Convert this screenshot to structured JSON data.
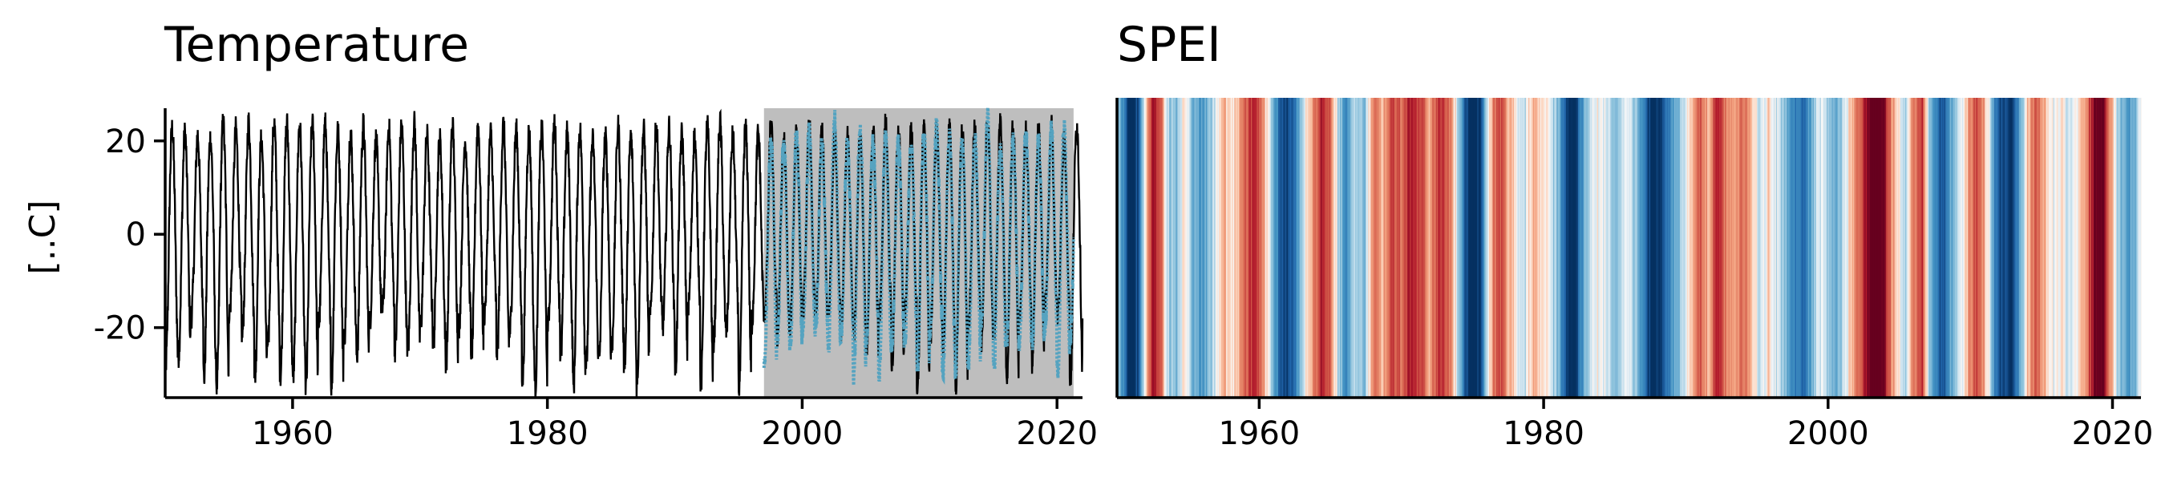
{
  "chart_data": [
    {
      "type": "line",
      "title": "Temperature",
      "ylabel": "[..C]",
      "xlabel": "",
      "xlim": [
        1950,
        2022
      ],
      "ylim": [
        -35,
        27
      ],
      "xticks": [
        1960,
        1980,
        2000,
        2020
      ],
      "yticks": [
        -20,
        0,
        20
      ],
      "ytick_labels": [
        "-20",
        "0",
        "20"
      ],
      "shaded_period": [
        1997,
        2021.3
      ],
      "shade_color": "#bebebe",
      "series": [
        {
          "color": "#000000",
          "range": [
            1950,
            2022
          ],
          "annual_peak_max": [
            20,
            24
          ],
          "annual_trough_min": [
            -33,
            -15
          ],
          "sampling": "weekly",
          "notable_minimum": {
            "x": 1987,
            "y": -35
          }
        },
        {
          "color": "#55a3c0",
          "style": "dotted",
          "range": [
            1997,
            2021.3
          ],
          "annual_peak_max": [
            18,
            25
          ],
          "annual_trough_min": [
            -30,
            -18
          ]
        }
      ]
    },
    {
      "type": "heatmap",
      "title": "SPEI",
      "xlim": [
        1950,
        2022
      ],
      "xticks": [
        1960,
        1980,
        2000,
        2020
      ],
      "colormap": "RdBu",
      "color_range": [
        -2,
        2
      ],
      "stripe_anchors": [
        [
          1950.0,
          0.2
        ],
        [
          1950.5,
          1.3
        ],
        [
          1951.0,
          2.2
        ],
        [
          1951.5,
          1.7
        ],
        [
          1952.0,
          -0.3
        ],
        [
          1952.6,
          -1.7
        ],
        [
          1953.1,
          -0.9
        ],
        [
          1953.6,
          0.4
        ],
        [
          1954.2,
          0.6
        ],
        [
          1954.8,
          -0.3
        ],
        [
          1955.4,
          0.7
        ],
        [
          1956.0,
          1.0
        ],
        [
          1956.8,
          0.3
        ],
        [
          1957.5,
          -0.4
        ],
        [
          1958.2,
          -0.2
        ],
        [
          1959.0,
          -0.9
        ],
        [
          1959.6,
          -1.4
        ],
        [
          1960.2,
          -0.8
        ],
        [
          1960.8,
          0.4
        ],
        [
          1961.4,
          1.4
        ],
        [
          1962.0,
          2.0
        ],
        [
          1962.6,
          1.2
        ],
        [
          1963.2,
          0.1
        ],
        [
          1963.8,
          -0.6
        ],
        [
          1964.4,
          -1.5
        ],
        [
          1965.0,
          -1.0
        ],
        [
          1965.6,
          0.5
        ],
        [
          1966.2,
          1.1
        ],
        [
          1966.8,
          0.3
        ],
        [
          1967.4,
          0.7
        ],
        [
          1968.0,
          -0.8
        ],
        [
          1968.6,
          -0.4
        ],
        [
          1969.3,
          -1.3
        ],
        [
          1970.0,
          -0.9
        ],
        [
          1970.7,
          -1.6
        ],
        [
          1971.4,
          -1.1
        ],
        [
          1972.0,
          -0.5
        ],
        [
          1972.7,
          -1.4
        ],
        [
          1973.4,
          -0.8
        ],
        [
          1974.0,
          0.3
        ],
        [
          1974.5,
          1.6
        ],
        [
          1975.0,
          2.3
        ],
        [
          1975.6,
          1.8
        ],
        [
          1976.2,
          -0.3
        ],
        [
          1976.8,
          -1.3
        ],
        [
          1977.4,
          -0.6
        ],
        [
          1978.0,
          -0.2
        ],
        [
          1978.6,
          0.4
        ],
        [
          1979.2,
          -0.5
        ],
        [
          1979.8,
          -0.3
        ],
        [
          1980.4,
          0.2
        ],
        [
          1981.0,
          0.6
        ],
        [
          1981.6,
          1.9
        ],
        [
          1982.2,
          2.0
        ],
        [
          1982.8,
          0.8
        ],
        [
          1983.4,
          0.2
        ],
        [
          1984.0,
          -0.1
        ],
        [
          1984.6,
          0.3
        ],
        [
          1985.2,
          0.6
        ],
        [
          1985.8,
          0.1
        ],
        [
          1986.4,
          0.4
        ],
        [
          1987.0,
          1.2
        ],
        [
          1987.5,
          1.9
        ],
        [
          1988.0,
          2.1
        ],
        [
          1988.6,
          1.5
        ],
        [
          1989.2,
          0.9
        ],
        [
          1989.8,
          0.2
        ],
        [
          1990.4,
          -0.4
        ],
        [
          1991.0,
          -1.1
        ],
        [
          1991.6,
          -0.5
        ],
        [
          1992.2,
          -1.4
        ],
        [
          1992.8,
          -0.8
        ],
        [
          1993.4,
          -0.3
        ],
        [
          1994.0,
          -1.0
        ],
        [
          1994.6,
          -0.4
        ],
        [
          1995.2,
          0.3
        ],
        [
          1995.8,
          -0.2
        ],
        [
          1996.4,
          0.2
        ],
        [
          1997.0,
          0.5
        ],
        [
          1997.6,
          1.2
        ],
        [
          1998.2,
          1.5
        ],
        [
          1998.8,
          0.8
        ],
        [
          1999.4,
          0.1
        ],
        [
          2000.0,
          0.4
        ],
        [
          2000.6,
          0.7
        ],
        [
          2001.2,
          0.2
        ],
        [
          2001.8,
          -0.6
        ],
        [
          2002.4,
          -1.2
        ],
        [
          2002.9,
          -2.0
        ],
        [
          2003.3,
          -2.3
        ],
        [
          2003.8,
          -2.1
        ],
        [
          2004.3,
          -1.0
        ],
        [
          2004.8,
          -0.3
        ],
        [
          2005.4,
          0.4
        ],
        [
          2006.0,
          -0.8
        ],
        [
          2006.6,
          -1.4
        ],
        [
          2007.1,
          0.5
        ],
        [
          2007.6,
          1.3
        ],
        [
          2008.1,
          1.8
        ],
        [
          2008.6,
          0.9
        ],
        [
          2009.2,
          0.3
        ],
        [
          2009.8,
          -0.4
        ],
        [
          2010.4,
          -1.2
        ],
        [
          2011.0,
          -0.6
        ],
        [
          2011.6,
          0.9
        ],
        [
          2012.2,
          1.8
        ],
        [
          2012.8,
          2.0
        ],
        [
          2013.4,
          1.0
        ],
        [
          2014.0,
          -0.3
        ],
        [
          2014.6,
          -1.1
        ],
        [
          2015.2,
          -0.4
        ],
        [
          2015.8,
          0.1
        ],
        [
          2016.4,
          -0.2
        ],
        [
          2017.0,
          0.3
        ],
        [
          2017.6,
          -0.2
        ],
        [
          2018.2,
          -0.8
        ],
        [
          2018.8,
          -2.0
        ],
        [
          2019.3,
          -2.1
        ],
        [
          2019.8,
          -0.7
        ],
        [
          2020.4,
          0.4
        ],
        [
          2021.0,
          1.0
        ],
        [
          2021.6,
          0.6
        ],
        [
          2022.0,
          0.2
        ]
      ]
    }
  ]
}
